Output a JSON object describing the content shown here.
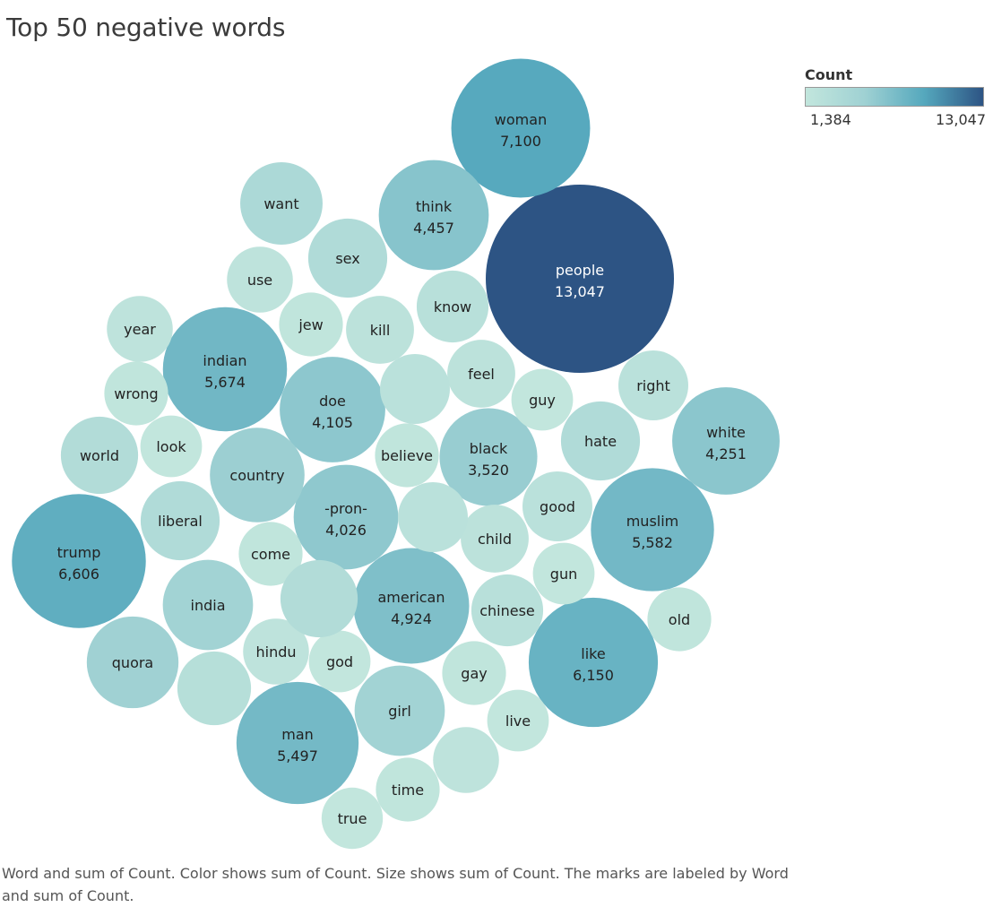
{
  "title": "Top 50 negative words",
  "legend": {
    "title": "Count",
    "min": "1,384",
    "max": "13,047",
    "colors": [
      "#c2e6dd",
      "#9fd1d3",
      "#55a8bd",
      "#2d5484"
    ]
  },
  "caption": "Word and sum of Count.  Color shows sum of Count.  Size shows sum of Count.  The marks are labeled by Word and sum of Count.",
  "chart_data": {
    "type": "bubble",
    "title": "Top 50 negative words",
    "size_measure": "Count",
    "color_measure": "Count",
    "color_range": [
      1384,
      13047
    ],
    "points": [
      {
        "word": "people",
        "count": 13047,
        "label": "13,047"
      },
      {
        "word": "woman",
        "count": 7100,
        "label": "7,100"
      },
      {
        "word": "trump",
        "count": 6606,
        "label": "6,606"
      },
      {
        "word": "like",
        "count": 6150,
        "label": "6,150"
      },
      {
        "word": "indian",
        "count": 5674,
        "label": "5,674"
      },
      {
        "word": "muslim",
        "count": 5582,
        "label": "5,582"
      },
      {
        "word": "man",
        "count": 5497,
        "label": "5,497"
      },
      {
        "word": "american",
        "count": 4924,
        "label": "4,924"
      },
      {
        "word": "think",
        "count": 4457,
        "label": "4,457"
      },
      {
        "word": "white",
        "count": 4251,
        "label": "4,251"
      },
      {
        "word": "doe",
        "count": 4105,
        "label": "4,105"
      },
      {
        "word": "-pron-",
        "count": 4026,
        "label": "4,026"
      },
      {
        "word": "black",
        "count": 3520,
        "label": "3,520"
      },
      {
        "word": "country",
        "count": 3300
      },
      {
        "word": "quora",
        "count": 3100
      },
      {
        "word": "india",
        "count": 3000
      },
      {
        "word": "girl",
        "count": 3000
      },
      {
        "word": "hate",
        "count": 2300
      },
      {
        "word": "want",
        "count": 2500
      },
      {
        "word": "world",
        "count": 2200
      },
      {
        "word": "liberal",
        "count": 2300
      },
      {
        "word": "sex",
        "count": 2300
      },
      {
        "word": "know",
        "count": 1900
      },
      {
        "word": "chinese",
        "count": 1900
      },
      {
        "word": "good",
        "count": 1800
      },
      {
        "word": "right",
        "count": 1800
      },
      {
        "word": "feel",
        "count": 1700
      },
      {
        "word": "kill",
        "count": 1700
      },
      {
        "word": "child",
        "count": 1700
      },
      {
        "word": "hindu",
        "count": 1600
      },
      {
        "word": "use",
        "count": 1600
      },
      {
        "word": "year",
        "count": 1600
      },
      {
        "word": "believe",
        "count": 1500
      },
      {
        "word": "gay",
        "count": 1500
      },
      {
        "word": "wrong",
        "count": 1500
      },
      {
        "word": "jew",
        "count": 1500
      },
      {
        "word": "come",
        "count": 1500
      },
      {
        "word": "time",
        "count": 1500
      },
      {
        "word": "old",
        "count": 1500
      },
      {
        "word": "look",
        "count": 1400
      },
      {
        "word": "live",
        "count": 1400
      },
      {
        "word": "guy",
        "count": 1400
      },
      {
        "word": "god",
        "count": 1400
      },
      {
        "word": "gun",
        "count": 1400
      },
      {
        "word": "true",
        "count": 1384
      },
      {
        "count": 2200
      },
      {
        "count": 2000
      },
      {
        "count": 1800
      },
      {
        "count": 1800
      },
      {
        "count": 1600
      }
    ]
  }
}
